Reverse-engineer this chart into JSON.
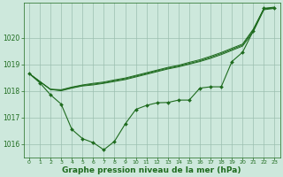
{
  "background_color": "#cde8dc",
  "grid_color": "#9bbfb0",
  "line_color": "#1e6b1e",
  "xlabel": "Graphe pression niveau de la mer (hPa)",
  "xlabel_fontsize": 6.5,
  "xlim": [
    -0.5,
    23.5
  ],
  "ylim": [
    1015.5,
    1021.3
  ],
  "yticks": [
    1016,
    1017,
    1018,
    1019,
    1020
  ],
  "xticks": [
    0,
    1,
    2,
    3,
    4,
    5,
    6,
    7,
    8,
    9,
    10,
    11,
    12,
    13,
    14,
    15,
    16,
    17,
    18,
    19,
    20,
    21,
    22,
    23
  ],
  "series1": [
    1018.65,
    1018.35,
    1018.05,
    1018.0,
    1018.1,
    1018.18,
    1018.22,
    1018.28,
    1018.35,
    1018.42,
    1018.52,
    1018.62,
    1018.72,
    1018.82,
    1018.9,
    1019.0,
    1019.1,
    1019.22,
    1019.36,
    1019.52,
    1019.68,
    1020.22,
    1021.05,
    1021.1
  ],
  "series2": [
    1018.65,
    1018.35,
    1018.05,
    1018.02,
    1018.12,
    1018.2,
    1018.25,
    1018.3,
    1018.38,
    1018.45,
    1018.55,
    1018.65,
    1018.75,
    1018.85,
    1018.93,
    1019.03,
    1019.13,
    1019.26,
    1019.4,
    1019.56,
    1019.72,
    1020.28,
    1021.08,
    1021.12
  ],
  "series3": [
    1018.65,
    1018.35,
    1018.06,
    1018.04,
    1018.14,
    1018.22,
    1018.28,
    1018.33,
    1018.41,
    1018.48,
    1018.58,
    1018.68,
    1018.78,
    1018.88,
    1018.96,
    1019.07,
    1019.17,
    1019.3,
    1019.44,
    1019.6,
    1019.76,
    1020.32,
    1021.1,
    1021.15
  ],
  "series_main": [
    1018.65,
    1018.3,
    1017.85,
    1017.5,
    1016.55,
    1016.2,
    1016.05,
    1015.78,
    1016.1,
    1016.75,
    1017.3,
    1017.45,
    1017.55,
    1017.56,
    1017.65,
    1017.65,
    1018.1,
    1018.15,
    1018.15,
    1019.1,
    1019.45,
    1020.25,
    1021.1,
    1021.12
  ]
}
